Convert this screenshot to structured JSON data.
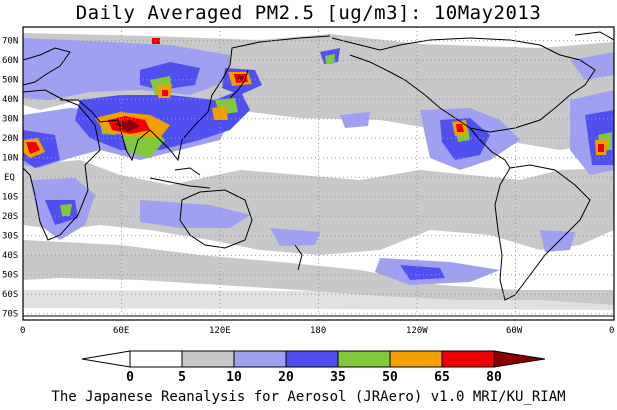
{
  "title": "Daily Averaged PM2.5 [ug/m3]: 10May2013",
  "footer": "The Japanese Reanalysis for Aerosol (JRAero) v1.0 MRI/KU_RIAM",
  "map": {
    "projection": "equirectangular, centered on 180",
    "lon_range": [
      0,
      360
    ],
    "lat_range": [
      -75,
      75
    ],
    "lat_ticks": [
      "70N",
      "60N",
      "50N",
      "40N",
      "30N",
      "20N",
      "10N",
      "EQ",
      "10S",
      "20S",
      "30S",
      "40S",
      "50S",
      "60S",
      "70S"
    ],
    "lon_ticks": [
      "0",
      "60E",
      "120E",
      "180",
      "120W",
      "60W",
      "0"
    ],
    "gridlines": "dotted"
  },
  "colorbar": {
    "levels": [
      "0",
      "5",
      "10",
      "20",
      "35",
      "50",
      "65",
      "80"
    ],
    "colors": [
      "#ffffff",
      "#c8c8c8",
      "#a0a0f0",
      "#5050f0",
      "#80c83c",
      "#f0a000",
      "#f00000",
      "#8b0000"
    ]
  }
}
